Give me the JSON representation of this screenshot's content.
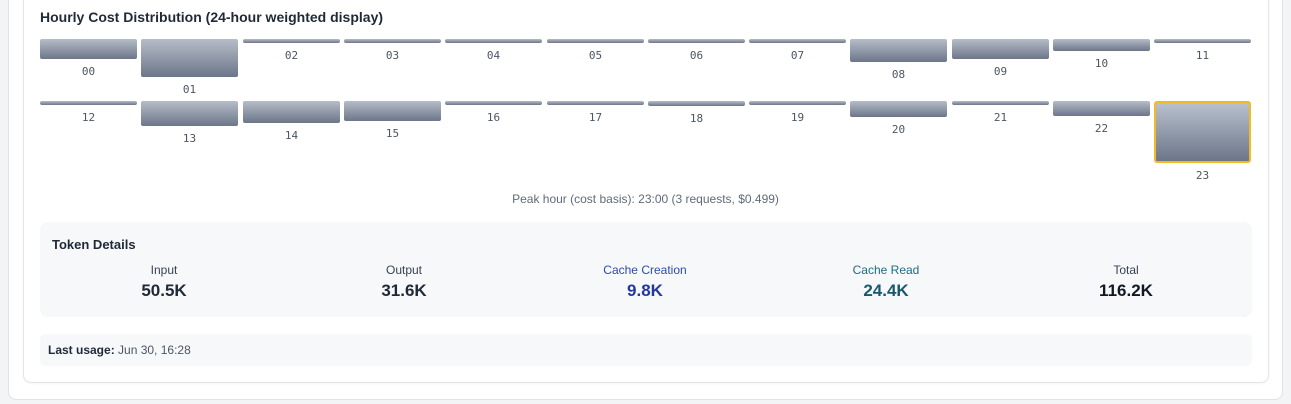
{
  "section_title": "Hourly Cost Distribution (24-hour weighted display)",
  "hours": [
    {
      "label": "00",
      "level": 0.33
    },
    {
      "label": "01",
      "level": 0.62
    },
    {
      "label": "02",
      "level": 0.07
    },
    {
      "label": "03",
      "level": 0.07
    },
    {
      "label": "04",
      "level": 0.07
    },
    {
      "label": "05",
      "level": 0.07
    },
    {
      "label": "06",
      "level": 0.07
    },
    {
      "label": "07",
      "level": 0.07
    },
    {
      "label": "08",
      "level": 0.37
    },
    {
      "label": "09",
      "level": 0.32
    },
    {
      "label": "10",
      "level": 0.2
    },
    {
      "label": "11",
      "level": 0.07
    },
    {
      "label": "12",
      "level": 0.07
    },
    {
      "label": "13",
      "level": 0.41
    },
    {
      "label": "14",
      "level": 0.35
    },
    {
      "label": "15",
      "level": 0.33
    },
    {
      "label": "16",
      "level": 0.07
    },
    {
      "label": "17",
      "level": 0.07
    },
    {
      "label": "18",
      "level": 0.08
    },
    {
      "label": "19",
      "level": 0.07
    },
    {
      "label": "20",
      "level": 0.25
    },
    {
      "label": "21",
      "level": 0.07
    },
    {
      "label": "22",
      "level": 0.24
    },
    {
      "label": "23",
      "level": 1.0,
      "peak": true
    }
  ],
  "peak_note": "Peak hour (cost basis): 23:00 (3 requests, $0.499)",
  "token_details": {
    "title": "Token Details",
    "items": [
      {
        "label": "Input",
        "value": "50.5K",
        "label_color": "#374151",
        "value_color": "#1f2937"
      },
      {
        "label": "Output",
        "value": "31.6K",
        "label_color": "#374151",
        "value_color": "#1f2937"
      },
      {
        "label": "Cache Creation",
        "value": "9.8K",
        "label_color": "#2c4da8",
        "value_color": "#22399a"
      },
      {
        "label": "Cache Read",
        "value": "24.4K",
        "label_color": "#1f6b82",
        "value_color": "#19596d"
      },
      {
        "label": "Total",
        "value": "116.2K",
        "label_color": "#374151",
        "value_color": "#111827"
      }
    ]
  },
  "last_usage": {
    "label": "Last usage:",
    "value": "Jun 30, 16:28"
  },
  "colors": {
    "peak_border": "#f2bb22",
    "bar_top": "#b6bdc8",
    "bar_bottom": "#6c7689"
  }
}
